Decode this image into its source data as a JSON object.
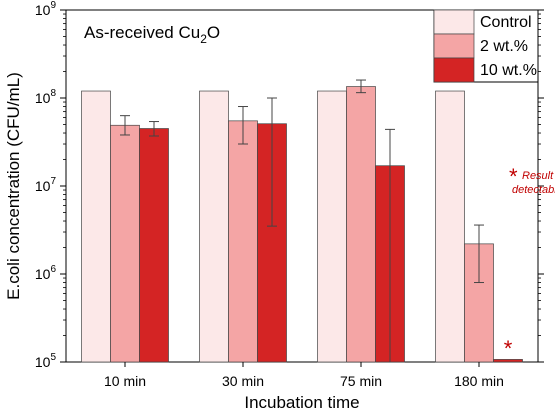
{
  "chart_data": {
    "type": "bar",
    "title": "",
    "xlabel": "Incubation time",
    "ylabel": "E.coli concentration (CFU/mL)",
    "yscale": "log",
    "ylim": [
      100000,
      1000000000
    ],
    "yticks": [
      {
        "value": 100000,
        "base": "10",
        "exp": "5"
      },
      {
        "value": 1000000,
        "base": "10",
        "exp": "6"
      },
      {
        "value": 10000000,
        "base": "10",
        "exp": "7"
      },
      {
        "value": 100000000,
        "base": "10",
        "exp": "8"
      },
      {
        "value": 1000000000,
        "base": "10",
        "exp": "9"
      }
    ],
    "categories": [
      "10 min",
      "30 min",
      "75 min",
      "180 min"
    ],
    "series": [
      {
        "name": "Control",
        "color": "#FCE8E8",
        "values": [
          120000000,
          120000000,
          120000000,
          120000000
        ],
        "errors": [
          null,
          null,
          null,
          null
        ]
      },
      {
        "name": "2 wt.%",
        "color": "#F4A5A5",
        "values": [
          49000000,
          55000000,
          135000000,
          2200000
        ],
        "errors": [
          [
            38000000,
            63000000
          ],
          [
            30000000,
            80000000
          ],
          [
            115000000,
            160000000
          ],
          [
            800000,
            3600000
          ]
        ]
      },
      {
        "name": "10 wt.%",
        "color": "#D42424",
        "values": [
          45000000,
          51000000,
          17000000,
          107000
        ],
        "errors": [
          [
            37000000,
            54000000
          ],
          [
            3500000,
            100000000
          ],
          [
            null,
            44000000
          ],
          null
        ]
      }
    ],
    "legend_position": "top-right",
    "annotation": {
      "main": "As-received Cu",
      "subscript": "2",
      "suffix": "O"
    },
    "note": {
      "star": "*",
      "line1": "Result not",
      "line2": "detectable",
      "color": "#C00000"
    },
    "marker_star": "*"
  }
}
